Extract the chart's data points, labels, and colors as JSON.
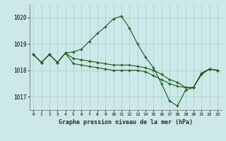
{
  "title": "Graphe pression niveau de la mer (hPa)",
  "bg_color": "#cce8e8",
  "grid_color": "#aacccc",
  "line_color": "#1a5c1a",
  "xlim": [
    -0.5,
    23.5
  ],
  "ylim": [
    1016.5,
    1020.5
  ],
  "yticks": [
    1017,
    1018,
    1019,
    1020
  ],
  "xticks": [
    0,
    1,
    2,
    3,
    4,
    5,
    6,
    7,
    8,
    9,
    10,
    11,
    12,
    13,
    14,
    15,
    16,
    17,
    18,
    19,
    20,
    21,
    22,
    23
  ],
  "line1": [
    1018.6,
    1018.3,
    1018.6,
    1018.3,
    1018.65,
    1018.7,
    1018.8,
    1019.1,
    1019.4,
    1019.65,
    1019.95,
    1020.05,
    1019.6,
    1019.0,
    1018.5,
    1018.1,
    1017.5,
    1016.85,
    1016.65,
    1017.25,
    1017.35,
    1017.9,
    1018.05,
    1018.0
  ],
  "line2": [
    1018.6,
    1018.3,
    1018.6,
    1018.3,
    1018.65,
    1018.25,
    1018.2,
    1018.15,
    1018.1,
    1018.05,
    1018.0,
    1018.0,
    1018.0,
    1018.0,
    1017.95,
    1017.8,
    1017.65,
    1017.5,
    1017.4,
    1017.35,
    1017.35,
    1017.85,
    1018.05,
    1018.0
  ],
  "line3": [
    1018.6,
    1018.3,
    1018.6,
    1018.3,
    1018.65,
    1018.45,
    1018.4,
    1018.35,
    1018.3,
    1018.25,
    1018.2,
    1018.2,
    1018.2,
    1018.15,
    1018.1,
    1018.0,
    1017.85,
    1017.65,
    1017.55,
    1017.35,
    1017.35,
    1017.85,
    1018.05,
    1018.0
  ]
}
